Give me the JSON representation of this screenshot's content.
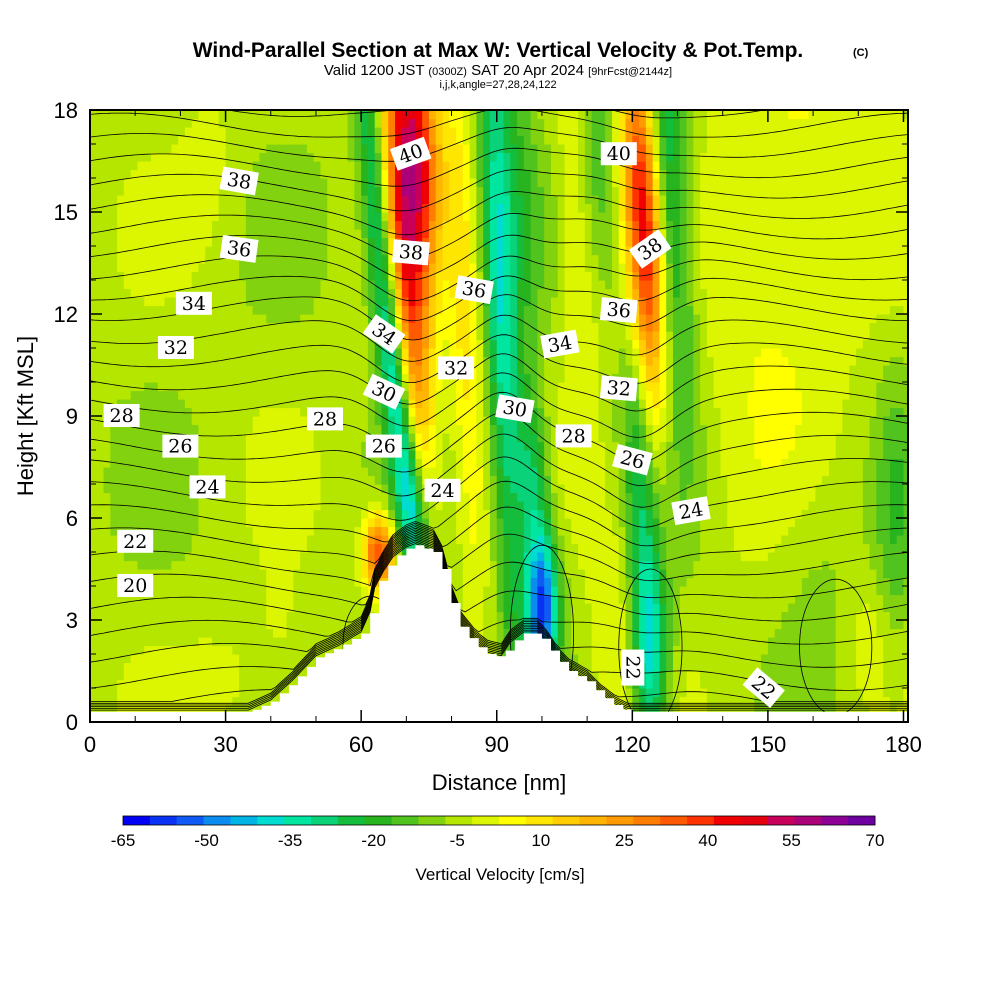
{
  "chart_data": {
    "type": "heatmap",
    "title": "Wind-Parallel Section at Max W: Vertical Velocity & Pot.Temp.",
    "title_mark": "(C)",
    "subtitle": {
      "valid": "Valid 1200 JST",
      "utc": "(0300Z)",
      "date": "SAT 20 Apr 2024",
      "fcst": "[9hrFcst@2144z]"
    },
    "indices": "i,j,k,angle=27,28,24,122",
    "xlabel": "Distance [nm]",
    "ylabel": "Height [Kft MSL]",
    "xlim": [
      0,
      181
    ],
    "ylim": [
      0,
      18
    ],
    "x_ticks": [
      "0",
      "30",
      "60",
      "90",
      "120",
      "150",
      "180"
    ],
    "y_ticks": [
      "0",
      "3",
      "6",
      "9",
      "12",
      "15",
      "18"
    ],
    "colorbar": {
      "label": "Vertical Velocity [cm/s]",
      "tick_labels": [
        "-65",
        "-50",
        "-35",
        "-20",
        "-5",
        "10",
        "25",
        "40",
        "55",
        "70"
      ],
      "colors": [
        "#0000f5",
        "#0a32f5",
        "#0f5af5",
        "#0a8cf0",
        "#00b4e6",
        "#00dcd2",
        "#00e6a0",
        "#0ad278",
        "#14be3c",
        "#28b41e",
        "#50c31e",
        "#82d20f",
        "#b4e600",
        "#dcf500",
        "#ffff00",
        "#ffe600",
        "#ffcd00",
        "#ffb400",
        "#ff9b00",
        "#ff7d00",
        "#ff5a00",
        "#ff3200",
        "#f00000",
        "#e6000f",
        "#c8005a",
        "#aa0078",
        "#8c0096",
        "#6e00a0"
      ]
    },
    "vertical_velocity_units": "cm/s",
    "terrain_profile": [
      [
        0,
        0.3
      ],
      [
        35,
        0.3
      ],
      [
        40,
        0.6
      ],
      [
        45,
        1.2
      ],
      [
        50,
        1.9
      ],
      [
        55,
        2.2
      ],
      [
        60,
        2.6
      ],
      [
        62,
        3.2
      ],
      [
        63,
        3.9
      ],
      [
        65,
        4.4
      ],
      [
        67,
        4.8
      ],
      [
        70,
        5.1
      ],
      [
        72,
        5.2
      ],
      [
        76,
        5.0
      ],
      [
        78,
        4.5
      ],
      [
        80,
        3.5
      ],
      [
        82,
        2.8
      ],
      [
        85,
        2.3
      ],
      [
        88,
        2.0
      ],
      [
        91,
        1.9
      ],
      [
        93,
        2.3
      ],
      [
        96,
        2.6
      ],
      [
        99,
        2.6
      ],
      [
        101,
        2.3
      ],
      [
        103,
        1.9
      ],
      [
        106,
        1.5
      ],
      [
        110,
        1.2
      ],
      [
        113,
        0.8
      ],
      [
        116,
        0.5
      ],
      [
        119,
        0.3
      ],
      [
        181,
        0.3
      ]
    ],
    "w_anomalies": [
      {
        "x": 70.0,
        "z": 13.5,
        "sx": 3.5,
        "sz": 6.0,
        "tilt": -0.35,
        "amp": 45
      },
      {
        "x": 64.0,
        "z": 5.0,
        "sx": 2.5,
        "sz": 0.8,
        "tilt": 0.0,
        "amp": 45
      },
      {
        "x": 73.0,
        "z": 17.0,
        "sx": 3.5,
        "sz": 2.5,
        "tilt": -0.3,
        "amp": 35
      },
      {
        "x": 64.0,
        "z": 14.0,
        "sx": 2.2,
        "sz": 5.5,
        "tilt": -0.6,
        "amp": -30
      },
      {
        "x": 69.0,
        "z": 9.0,
        "sx": 2.0,
        "sz": 3.0,
        "tilt": -0.6,
        "amp": -30
      },
      {
        "x": 72.0,
        "z": 6.0,
        "sx": 2.5,
        "sz": 1.5,
        "tilt": -0.5,
        "amp": -25
      },
      {
        "x": 83.0,
        "z": 12.0,
        "sx": 2.5,
        "sz": 6.0,
        "tilt": -0.3,
        "amp": 15
      },
      {
        "x": 91.0,
        "z": 12.0,
        "sx": 2.5,
        "sz": 7.0,
        "tilt": -0.3,
        "amp": -30
      },
      {
        "x": 100.0,
        "z": 3.3,
        "sx": 2.5,
        "sz": 1.5,
        "tilt": 0.0,
        "amp": -50
      },
      {
        "x": 98.0,
        "z": 7.0,
        "sx": 2.5,
        "sz": 2.0,
        "tilt": -0.3,
        "amp": -25
      },
      {
        "x": 108.0,
        "z": 14.0,
        "sx": 3.0,
        "sz": 5.0,
        "tilt": -0.3,
        "amp": 10
      },
      {
        "x": 122.0,
        "z": 16.0,
        "sx": 3.0,
        "sz": 3.5,
        "tilt": -0.35,
        "amp": 38
      },
      {
        "x": 124.0,
        "z": 12.0,
        "sx": 3.0,
        "sz": 3.5,
        "tilt": -0.35,
        "amp": 25
      },
      {
        "x": 128.0,
        "z": 15.5,
        "sx": 3.5,
        "sz": 5.0,
        "tilt": -0.3,
        "amp": -28
      },
      {
        "x": 124.0,
        "z": 2.0,
        "sx": 3.0,
        "sz": 2.0,
        "tilt": 0.0,
        "amp": -28
      },
      {
        "x": 122.0,
        "z": 6.5,
        "sx": 2.5,
        "sz": 4.0,
        "tilt": -0.3,
        "amp": -20
      },
      {
        "x": 116.0,
        "z": 3.0,
        "sx": 3.5,
        "sz": 2.5,
        "tilt": 0.0,
        "amp": 8
      },
      {
        "x": 112.0,
        "z": 17.0,
        "sx": 3.0,
        "sz": 3.0,
        "tilt": -0.35,
        "amp": -12
      },
      {
        "x": 95.0,
        "z": 16.0,
        "sx": 3.0,
        "sz": 4.0,
        "tilt": -0.3,
        "amp": -10
      },
      {
        "x": 42.0,
        "z": 2.5,
        "sx": 4.0,
        "sz": 1.5,
        "tilt": 0.0,
        "amp": 5
      },
      {
        "x": 30.0,
        "z": 1.2,
        "sx": 6.0,
        "sz": 1.0,
        "tilt": 0.0,
        "amp": 6
      },
      {
        "x": 27.0,
        "z": 16.5,
        "sx": 5.0,
        "sz": 2.0,
        "tilt": 0.0,
        "amp": 4
      },
      {
        "x": 150.0,
        "z": 12.5,
        "sx": 12.0,
        "sz": 6.0,
        "tilt": 0.0,
        "amp": 8
      },
      {
        "x": 165.0,
        "z": 16.0,
        "sx": 12.0,
        "sz": 3.0,
        "tilt": 0.0,
        "amp": 6
      },
      {
        "x": 160.0,
        "z": 5.0,
        "sx": 8.0,
        "sz": 2.5,
        "tilt": 0.0,
        "amp": -6
      },
      {
        "x": 172.0,
        "z": 2.5,
        "sx": 4.0,
        "sz": 1.5,
        "tilt": 0.0,
        "amp": 6
      },
      {
        "x": 178.0,
        "z": 6.0,
        "sx": 3.0,
        "sz": 3.0,
        "tilt": 0.0,
        "amp": -10
      }
    ],
    "contour_labels": [
      {
        "text": "40",
        "x": 71,
        "z": 16.7,
        "rot": -20
      },
      {
        "text": "40",
        "x": 117,
        "z": 16.7,
        "rot": 0
      },
      {
        "text": "38",
        "x": 33,
        "z": 15.9,
        "rot": 10
      },
      {
        "text": "38",
        "x": 71,
        "z": 13.8,
        "rot": 5
      },
      {
        "text": "38",
        "x": 124,
        "z": 13.9,
        "rot": -35
      },
      {
        "text": "36",
        "x": 33,
        "z": 13.9,
        "rot": 8
      },
      {
        "text": "36",
        "x": 85,
        "z": 12.7,
        "rot": 10
      },
      {
        "text": "36",
        "x": 117,
        "z": 12.1,
        "rot": 5
      },
      {
        "text": "34",
        "x": 23,
        "z": 12.3,
        "rot": 0
      },
      {
        "text": "34",
        "x": 65,
        "z": 11.4,
        "rot": 35
      },
      {
        "text": "34",
        "x": 104,
        "z": 11.1,
        "rot": -10
      },
      {
        "text": "32",
        "x": 19,
        "z": 11.0,
        "rot": 0
      },
      {
        "text": "32",
        "x": 81,
        "z": 10.4,
        "rot": 0
      },
      {
        "text": "32",
        "x": 117,
        "z": 9.8,
        "rot": 5
      },
      {
        "text": "30",
        "x": 65,
        "z": 9.7,
        "rot": 25
      },
      {
        "text": "30",
        "x": 94,
        "z": 9.2,
        "rot": 10
      },
      {
        "text": "28",
        "x": 7,
        "z": 9.0,
        "rot": 0
      },
      {
        "text": "28",
        "x": 52,
        "z": 8.9,
        "rot": 0
      },
      {
        "text": "28",
        "x": 107,
        "z": 8.4,
        "rot": 0
      },
      {
        "text": "26",
        "x": 20,
        "z": 8.1,
        "rot": 0
      },
      {
        "text": "26",
        "x": 65,
        "z": 8.1,
        "rot": 0
      },
      {
        "text": "26",
        "x": 120,
        "z": 7.7,
        "rot": 15
      },
      {
        "text": "24",
        "x": 26,
        "z": 6.9,
        "rot": 0
      },
      {
        "text": "24",
        "x": 78,
        "z": 6.8,
        "rot": 0
      },
      {
        "text": "24",
        "x": 133,
        "z": 6.2,
        "rot": -10
      },
      {
        "text": "22",
        "x": 10,
        "z": 5.3,
        "rot": 0
      },
      {
        "text": "22",
        "x": 120,
        "z": 1.6,
        "rot": 90
      },
      {
        "text": "22",
        "x": 149,
        "z": 1.0,
        "rot": 40
      },
      {
        "text": "20",
        "x": 10,
        "z": 4.0,
        "rot": 0
      }
    ]
  }
}
